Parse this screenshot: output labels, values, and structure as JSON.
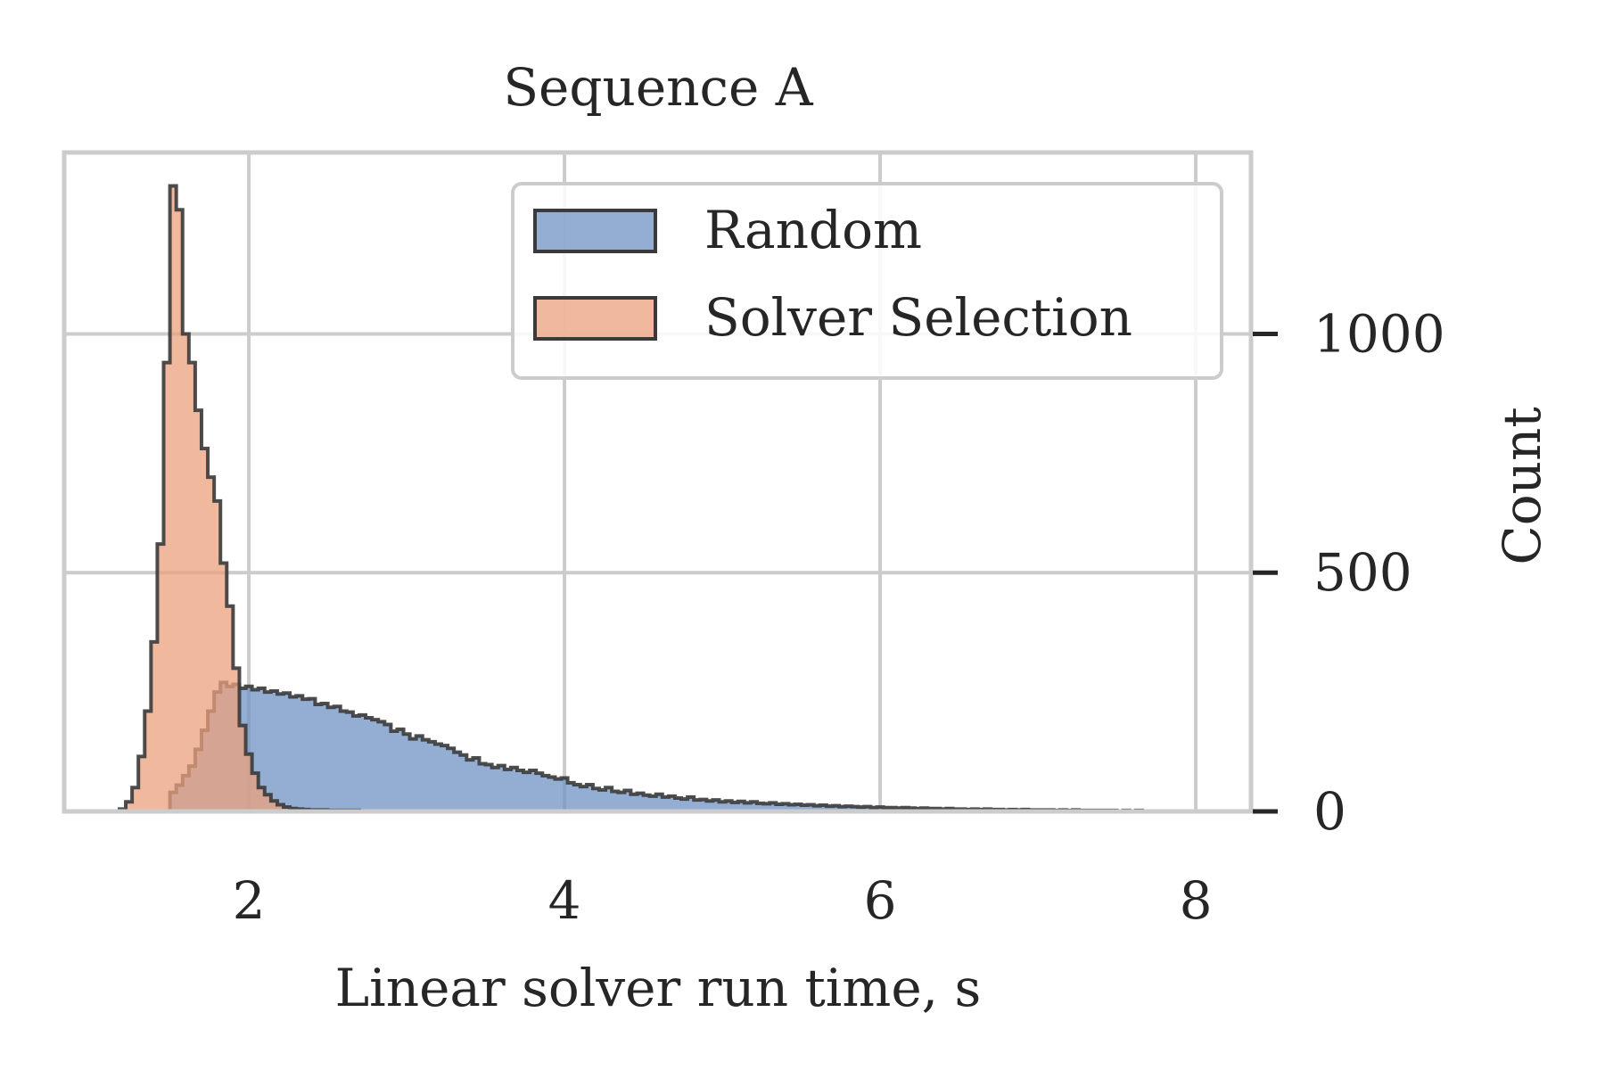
{
  "chart_data": {
    "type": "histogram",
    "title": "Sequence A",
    "xlabel": "Linear solver run time, s",
    "ylabel": "Count",
    "xlim": [
      0.83,
      8.35
    ],
    "ylim": [
      0,
      1380
    ],
    "x_ticks": [
      2,
      4,
      6,
      8
    ],
    "y_ticks": [
      0,
      500,
      1000
    ],
    "y_axis_side": "right",
    "grid": true,
    "legend_placement": "top-right",
    "bin_width": 0.04,
    "series": [
      {
        "name": "Random",
        "color": "#6f92c4",
        "bins": [
          [
            1.5,
            40
          ],
          [
            1.54,
            55
          ],
          [
            1.58,
            75
          ],
          [
            1.62,
            95
          ],
          [
            1.66,
            130
          ],
          [
            1.7,
            170
          ],
          [
            1.74,
            210
          ],
          [
            1.78,
            250
          ],
          [
            1.82,
            270
          ],
          [
            1.86,
            262
          ],
          [
            1.9,
            266
          ],
          [
            1.94,
            258
          ],
          [
            1.98,
            262
          ],
          [
            2.02,
            255
          ],
          [
            2.06,
            258
          ],
          [
            2.1,
            250
          ],
          [
            2.14,
            252
          ],
          [
            2.18,
            246
          ],
          [
            2.22,
            248
          ],
          [
            2.26,
            240
          ],
          [
            2.3,
            242
          ],
          [
            2.34,
            235
          ],
          [
            2.38,
            236
          ],
          [
            2.42,
            224
          ],
          [
            2.46,
            226
          ],
          [
            2.5,
            218
          ],
          [
            2.54,
            220
          ],
          [
            2.58,
            210
          ],
          [
            2.62,
            208
          ],
          [
            2.66,
            200
          ],
          [
            2.7,
            202
          ],
          [
            2.74,
            196
          ],
          [
            2.78,
            192
          ],
          [
            2.82,
            188
          ],
          [
            2.86,
            182
          ],
          [
            2.9,
            168
          ],
          [
            2.94,
            172
          ],
          [
            2.98,
            162
          ],
          [
            3.02,
            152
          ],
          [
            3.06,
            158
          ],
          [
            3.1,
            150
          ],
          [
            3.14,
            146
          ],
          [
            3.18,
            141
          ],
          [
            3.22,
            138
          ],
          [
            3.26,
            132
          ],
          [
            3.3,
            124
          ],
          [
            3.34,
            118
          ],
          [
            3.38,
            108
          ],
          [
            3.42,
            112
          ],
          [
            3.46,
            100
          ],
          [
            3.5,
            98
          ],
          [
            3.54,
            92
          ],
          [
            3.58,
            96
          ],
          [
            3.62,
            88
          ],
          [
            3.66,
            92
          ],
          [
            3.7,
            86
          ],
          [
            3.74,
            82
          ],
          [
            3.78,
            86
          ],
          [
            3.82,
            80
          ],
          [
            3.86,
            75
          ],
          [
            3.9,
            72
          ],
          [
            3.94,
            68
          ],
          [
            3.98,
            70
          ],
          [
            4.02,
            60
          ],
          [
            4.06,
            56
          ],
          [
            4.1,
            52
          ],
          [
            4.14,
            56
          ],
          [
            4.18,
            48
          ],
          [
            4.22,
            45
          ],
          [
            4.26,
            50
          ],
          [
            4.3,
            42
          ],
          [
            4.34,
            40
          ],
          [
            4.38,
            44
          ],
          [
            4.42,
            36
          ],
          [
            4.46,
            38
          ],
          [
            4.5,
            34
          ],
          [
            4.54,
            32
          ],
          [
            4.58,
            36
          ],
          [
            4.62,
            30
          ],
          [
            4.66,
            32
          ],
          [
            4.7,
            28
          ],
          [
            4.74,
            26
          ],
          [
            4.78,
            30
          ],
          [
            4.82,
            24
          ],
          [
            4.86,
            25
          ],
          [
            4.9,
            22
          ],
          [
            4.94,
            24
          ],
          [
            4.98,
            20
          ],
          [
            5.02,
            22
          ],
          [
            5.06,
            19
          ],
          [
            5.1,
            21
          ],
          [
            5.14,
            18
          ],
          [
            5.18,
            20
          ],
          [
            5.22,
            17
          ],
          [
            5.26,
            16
          ],
          [
            5.3,
            18
          ],
          [
            5.34,
            15
          ],
          [
            5.38,
            16
          ],
          [
            5.42,
            14
          ],
          [
            5.46,
            15
          ],
          [
            5.5,
            13
          ],
          [
            5.54,
            14
          ],
          [
            5.58,
            12
          ],
          [
            5.62,
            13
          ],
          [
            5.66,
            11
          ],
          [
            5.7,
            12
          ],
          [
            5.74,
            10
          ],
          [
            5.78,
            11
          ],
          [
            5.82,
            10
          ],
          [
            5.86,
            9
          ],
          [
            5.9,
            10
          ],
          [
            5.94,
            8
          ],
          [
            5.98,
            9
          ],
          [
            6.02,
            8
          ],
          [
            6.06,
            8
          ],
          [
            6.1,
            7
          ],
          [
            6.14,
            8
          ],
          [
            6.18,
            7
          ],
          [
            6.22,
            6
          ],
          [
            6.26,
            7
          ],
          [
            6.3,
            6
          ],
          [
            6.34,
            6
          ],
          [
            6.38,
            5
          ],
          [
            6.42,
            6
          ],
          [
            6.46,
            5
          ],
          [
            6.5,
            5
          ],
          [
            6.54,
            4
          ],
          [
            6.58,
            5
          ],
          [
            6.62,
            4
          ],
          [
            6.66,
            5
          ],
          [
            6.7,
            4
          ],
          [
            6.74,
            4
          ],
          [
            6.78,
            3
          ],
          [
            6.82,
            4
          ],
          [
            6.86,
            3
          ],
          [
            6.9,
            4
          ],
          [
            6.94,
            3
          ],
          [
            6.98,
            3
          ],
          [
            7.02,
            3
          ],
          [
            7.06,
            3
          ],
          [
            7.1,
            2
          ],
          [
            7.14,
            3
          ],
          [
            7.18,
            2
          ],
          [
            7.22,
            3
          ],
          [
            7.26,
            2
          ],
          [
            7.3,
            2
          ],
          [
            7.34,
            2
          ],
          [
            7.38,
            2
          ],
          [
            7.42,
            2
          ],
          [
            7.46,
            2
          ],
          [
            7.5,
            1
          ],
          [
            7.54,
            2
          ],
          [
            7.58,
            1
          ],
          [
            7.62,
            2
          ],
          [
            7.66,
            1
          ],
          [
            7.7,
            1
          ],
          [
            7.74,
            1
          ],
          [
            7.78,
            1
          ],
          [
            7.82,
            1
          ],
          [
            7.86,
            1
          ],
          [
            7.9,
            1
          ],
          [
            7.94,
            1
          ],
          [
            7.98,
            1
          ]
        ]
      },
      {
        "name": "Solver Selection",
        "color": "#eba27d",
        "bins": [
          [
            1.18,
            5
          ],
          [
            1.22,
            20
          ],
          [
            1.26,
            50
          ],
          [
            1.3,
            115
          ],
          [
            1.34,
            210
          ],
          [
            1.38,
            355
          ],
          [
            1.42,
            560
          ],
          [
            1.46,
            940
          ],
          [
            1.5,
            1310
          ],
          [
            1.54,
            1260
          ],
          [
            1.58,
            1000
          ],
          [
            1.62,
            940
          ],
          [
            1.66,
            840
          ],
          [
            1.7,
            760
          ],
          [
            1.74,
            700
          ],
          [
            1.78,
            650
          ],
          [
            1.82,
            520
          ],
          [
            1.86,
            430
          ],
          [
            1.9,
            300
          ],
          [
            1.94,
            180
          ],
          [
            1.98,
            120
          ],
          [
            2.02,
            80
          ],
          [
            2.06,
            50
          ],
          [
            2.1,
            35
          ],
          [
            2.14,
            22
          ],
          [
            2.18,
            14
          ],
          [
            2.22,
            9
          ],
          [
            2.26,
            6
          ],
          [
            2.3,
            5
          ],
          [
            2.34,
            4
          ],
          [
            2.38,
            3
          ],
          [
            2.42,
            3
          ],
          [
            2.46,
            3
          ],
          [
            2.5,
            2
          ],
          [
            2.54,
            2
          ],
          [
            2.58,
            2
          ],
          [
            2.62,
            2
          ],
          [
            2.66,
            2
          ],
          [
            2.7,
            1
          ],
          [
            2.74,
            1
          ],
          [
            2.78,
            1
          ],
          [
            2.82,
            1
          ],
          [
            2.86,
            1
          ],
          [
            2.9,
            1
          ],
          [
            2.94,
            1
          ],
          [
            2.98,
            1
          ],
          [
            3.02,
            1
          ],
          [
            3.06,
            1
          ],
          [
            3.1,
            1
          ],
          [
            3.14,
            1
          ],
          [
            3.18,
            1
          ],
          [
            3.22,
            1
          ],
          [
            3.26,
            1
          ],
          [
            3.3,
            1
          ],
          [
            3.34,
            1
          ],
          [
            3.38,
            1
          ],
          [
            3.42,
            1
          ],
          [
            3.46,
            1
          ],
          [
            3.5,
            1
          ],
          [
            3.54,
            1
          ],
          [
            3.58,
            1
          ],
          [
            3.62,
            1
          ],
          [
            3.66,
            1
          ],
          [
            3.7,
            1
          ],
          [
            3.74,
            1
          ],
          [
            3.78,
            1
          ],
          [
            3.82,
            1
          ],
          [
            3.86,
            1
          ],
          [
            3.9,
            1
          ],
          [
            3.94,
            1
          ],
          [
            3.98,
            1
          ]
        ]
      }
    ]
  }
}
